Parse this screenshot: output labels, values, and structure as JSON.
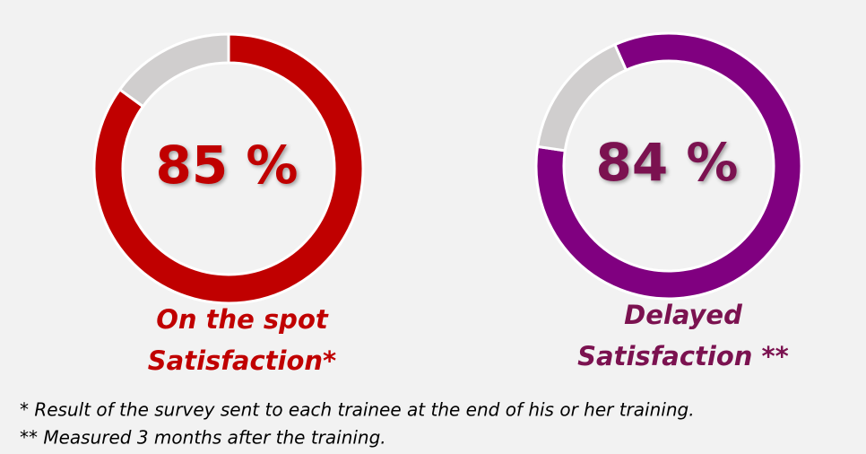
{
  "chart_data": [
    {
      "type": "donut",
      "title": [
        "On the spot",
        "Satisfaction*"
      ],
      "values": [
        85,
        15
      ],
      "value_labels": [
        "85 %",
        null
      ],
      "colors": [
        "#c00000",
        "#d0cece"
      ],
      "label_color": "#c00000"
    },
    {
      "type": "donut",
      "title": [
        "Delayed",
        "Satisfaction **"
      ],
      "values": [
        84,
        16
      ],
      "value_labels": [
        "84 %",
        null
      ],
      "colors": [
        "#800080",
        "#d0cece"
      ],
      "label_color": "#7b1250"
    }
  ],
  "footnotes": [
    "* Result of the survey sent to each trainee at the end of his or her training.",
    "** Measured 3 months after the training."
  ]
}
